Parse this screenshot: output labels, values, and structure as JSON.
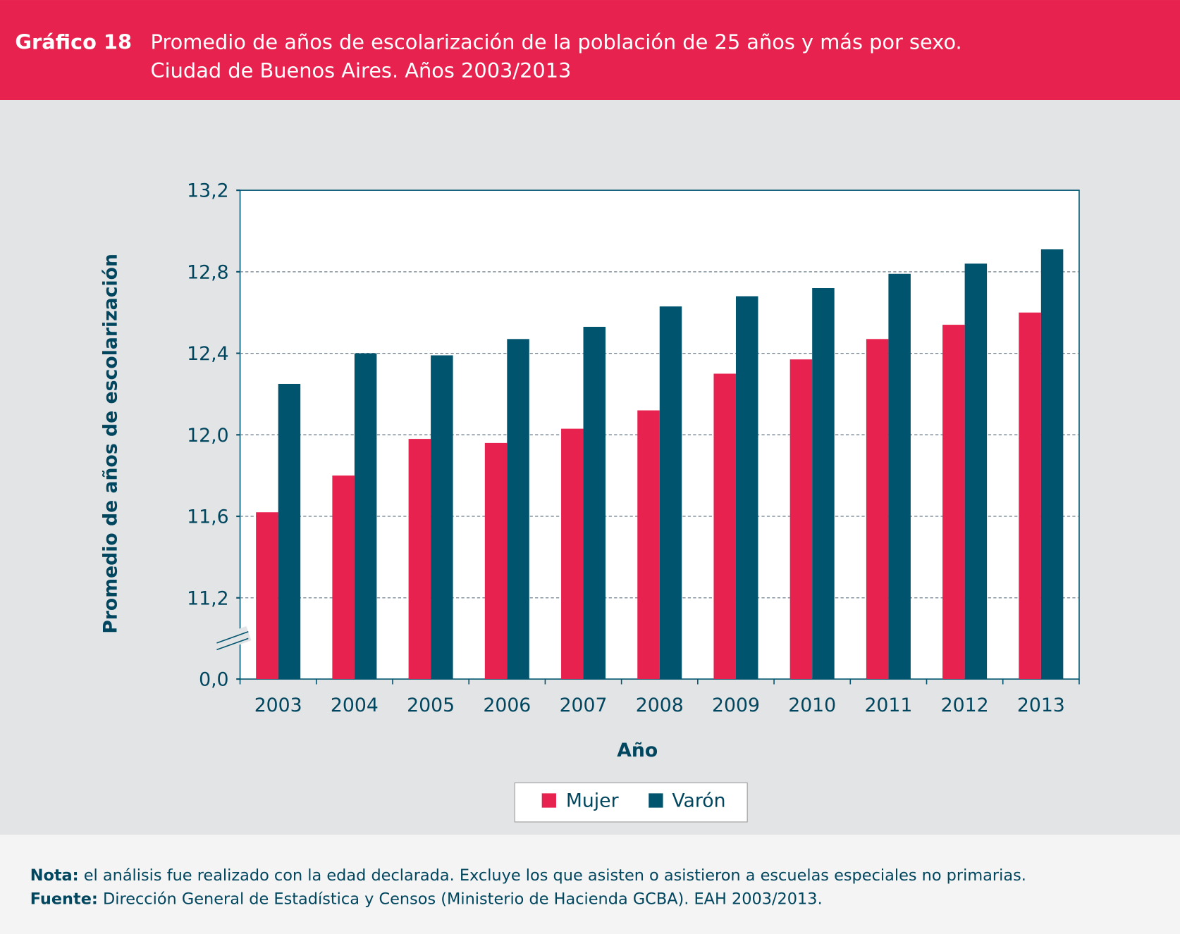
{
  "header": {
    "label": "Gráfico 18",
    "title_line1": "Promedio de años de escolarización de la población de 25 años y más por sexo.",
    "title_line2": "Ciudad de Buenos Aires. Años 2003/2013"
  },
  "colors": {
    "header": "#e8224f",
    "mujer": "#e8224f",
    "varon": "#00546e",
    "panel": "#e3e4e6",
    "text": "#00465e"
  },
  "chart_data": {
    "type": "bar",
    "xlabel": "Año",
    "ylabel": "Promedio de años de escolarización",
    "categories": [
      "2003",
      "2004",
      "2005",
      "2006",
      "2007",
      "2008",
      "2009",
      "2010",
      "2011",
      "2012",
      "2013"
    ],
    "y_ticks": [
      "0,0",
      "11,2",
      "11,6",
      "12,0",
      "12,4",
      "12,8",
      "13,2"
    ],
    "ylim": [
      11.2,
      13.2
    ],
    "axis_break": true,
    "grid": true,
    "legend_position": "bottom",
    "series": [
      {
        "name": "Mujer",
        "values": [
          11.62,
          11.8,
          11.98,
          11.96,
          12.03,
          12.12,
          12.3,
          12.37,
          12.47,
          12.54,
          12.6
        ]
      },
      {
        "name": "Varón",
        "values": [
          12.25,
          12.4,
          12.39,
          12.47,
          12.53,
          12.63,
          12.68,
          12.72,
          12.79,
          12.84,
          12.91
        ]
      }
    ]
  },
  "footer": {
    "nota_label": "Nota:",
    "nota_text": " el análisis fue realizado con la edad declarada. Excluye los que asisten o asistieron a escuelas especiales no primarias.",
    "fuente_label": "Fuente:",
    "fuente_text": " Dirección General de Estadística y Censos (Ministerio de Hacienda GCBA). EAH 2003/2013."
  }
}
